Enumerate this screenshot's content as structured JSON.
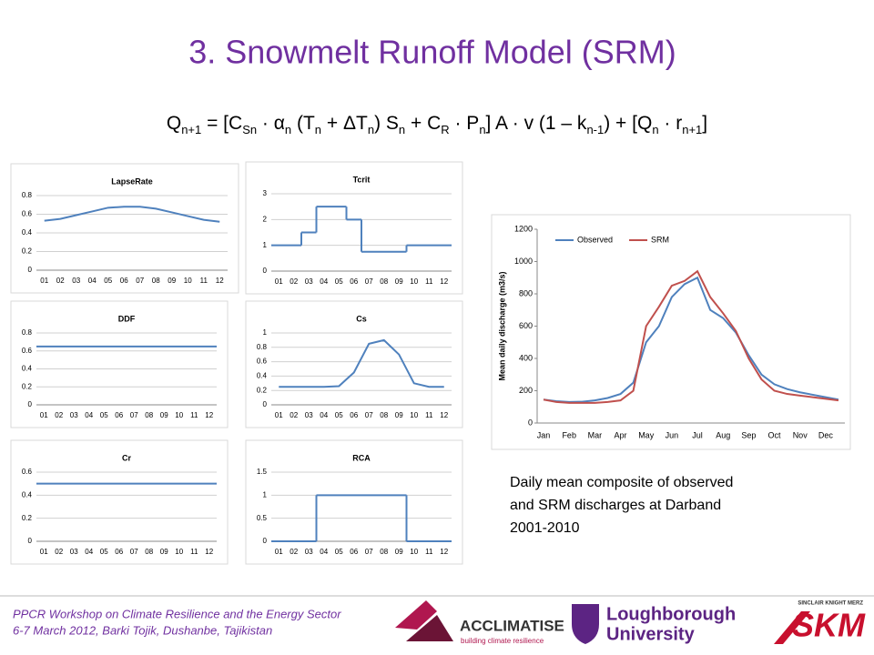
{
  "title": "3. Snowmelt Runoff Model (SRM)",
  "equation": [
    "Q",
    "n+1",
    " = [C",
    "Sn",
    " · α",
    "n",
    " (T",
    "n",
    " + ΔT",
    "n",
    ") S",
    "n",
    " + C",
    "R",
    " · P",
    "n",
    "] A · v (1 – k",
    "n-1",
    ") + [Q",
    "n",
    " · r",
    "n+1",
    "]"
  ],
  "chart_data": [
    {
      "type": "line",
      "title": "LapseRate",
      "categories": [
        "01",
        "02",
        "03",
        "04",
        "05",
        "06",
        "07",
        "08",
        "09",
        "10",
        "11",
        "12"
      ],
      "values": [
        0.53,
        0.55,
        0.59,
        0.63,
        0.67,
        0.68,
        0.68,
        0.66,
        0.62,
        0.58,
        0.54,
        0.52
      ],
      "color": "#4f81bd",
      "ylim": [
        0,
        0.8
      ],
      "yticks": [
        0,
        0.2,
        0.4,
        0.6,
        0.8
      ],
      "grid": true
    },
    {
      "type": "step",
      "title": "DDF",
      "categories": [
        "01",
        "02",
        "03",
        "04",
        "05",
        "06",
        "07",
        "08",
        "09",
        "10",
        "11",
        "12"
      ],
      "values": [
        0.65,
        0.65,
        0.65,
        0.65,
        0.65,
        0.65,
        0.65,
        0.65,
        0.65,
        0.65,
        0.65,
        0.65
      ],
      "color": "#4f81bd",
      "ylim": [
        0,
        0.8
      ],
      "yticks": [
        0,
        0.2,
        0.4,
        0.6,
        0.8
      ],
      "grid": true
    },
    {
      "type": "step",
      "title": "Cr",
      "categories": [
        "01",
        "02",
        "03",
        "04",
        "05",
        "06",
        "07",
        "08",
        "09",
        "10",
        "11",
        "12"
      ],
      "values": [
        0.5,
        0.5,
        0.5,
        0.5,
        0.5,
        0.5,
        0.5,
        0.5,
        0.5,
        0.5,
        0.5,
        0.5
      ],
      "color": "#4f81bd",
      "ylim": [
        0,
        0.6
      ],
      "yticks": [
        0,
        0.2,
        0.4,
        0.6
      ],
      "grid": true
    },
    {
      "type": "step",
      "title": "Tcrit",
      "categories": [
        "01",
        "02",
        "03",
        "04",
        "05",
        "06",
        "07",
        "08",
        "09",
        "10",
        "11",
        "12"
      ],
      "values": [
        1,
        1,
        1.5,
        2.5,
        2.5,
        2,
        0.75,
        0.75,
        0.75,
        1,
        1,
        1
      ],
      "color": "#4f81bd",
      "ylim": [
        0,
        3
      ],
      "yticks": [
        0,
        1,
        2,
        3
      ],
      "grid": true
    },
    {
      "type": "line",
      "title": "Cs",
      "categories": [
        "01",
        "02",
        "03",
        "04",
        "05",
        "06",
        "07",
        "08",
        "09",
        "10",
        "11",
        "12"
      ],
      "values": [
        0.25,
        0.25,
        0.25,
        0.25,
        0.26,
        0.45,
        0.85,
        0.9,
        0.7,
        0.3,
        0.25,
        0.25
      ],
      "color": "#4f81bd",
      "ylim": [
        0,
        1
      ],
      "yticks": [
        0,
        0.2,
        0.4,
        0.6,
        0.8,
        1
      ],
      "grid": true
    },
    {
      "type": "step",
      "title": "RCA",
      "categories": [
        "01",
        "02",
        "03",
        "04",
        "05",
        "06",
        "07",
        "08",
        "09",
        "10",
        "11",
        "12"
      ],
      "values": [
        0,
        0,
        0,
        1,
        1,
        1,
        1,
        1,
        1,
        0,
        0,
        0
      ],
      "color": "#4f81bd",
      "ylim": [
        0,
        1.5
      ],
      "yticks": [
        0,
        0.5,
        1,
        1.5
      ],
      "grid": true
    },
    {
      "type": "line",
      "ylabel": "Mean daily discharge (m3/s)",
      "categories": [
        "Jan",
        null,
        "Feb",
        null,
        "Mar",
        null,
        "Apr",
        null,
        "May",
        null,
        "Jun",
        null,
        "Jul",
        null,
        "Aug",
        null,
        "Sep",
        null,
        "Oct",
        null,
        "Nov",
        null,
        "Dec",
        null
      ],
      "series": [
        {
          "name": "Observed",
          "color": "#4f81bd",
          "values": [
            145,
            135,
            130,
            132,
            140,
            155,
            180,
            250,
            500,
            600,
            780,
            860,
            900,
            700,
            650,
            560,
            420,
            300,
            240,
            210,
            190,
            175,
            160,
            145
          ]
        },
        {
          "name": "SRM",
          "color": "#c0504d",
          "values": [
            145,
            130,
            125,
            125,
            125,
            130,
            140,
            200,
            600,
            720,
            850,
            880,
            940,
            780,
            680,
            570,
            400,
            270,
            200,
            180,
            170,
            160,
            150,
            140
          ]
        }
      ],
      "ylim": [
        0,
        1200
      ],
      "yticks": [
        0,
        200,
        400,
        600,
        800,
        1000,
        1200
      ],
      "grid": false,
      "legend": "upper left"
    }
  ],
  "caption": [
    "Daily mean composite of observed",
    "and SRM discharges at Darband",
    "2001-2010"
  ],
  "footer": [
    "PPCR Workshop on Climate Resilience and the Energy Sector",
    "6-7 March 2012, Barki Tojik, Dushanbe, Tajikistan"
  ],
  "logos": {
    "acclimatise": "ACCLIMATISE",
    "acclimatise_tagline": "building climate resilience",
    "loughborough": [
      "Loughborough",
      "University"
    ],
    "skm": "SKM",
    "skm_full": "SINCLAIR KNIGHT MERZ"
  }
}
